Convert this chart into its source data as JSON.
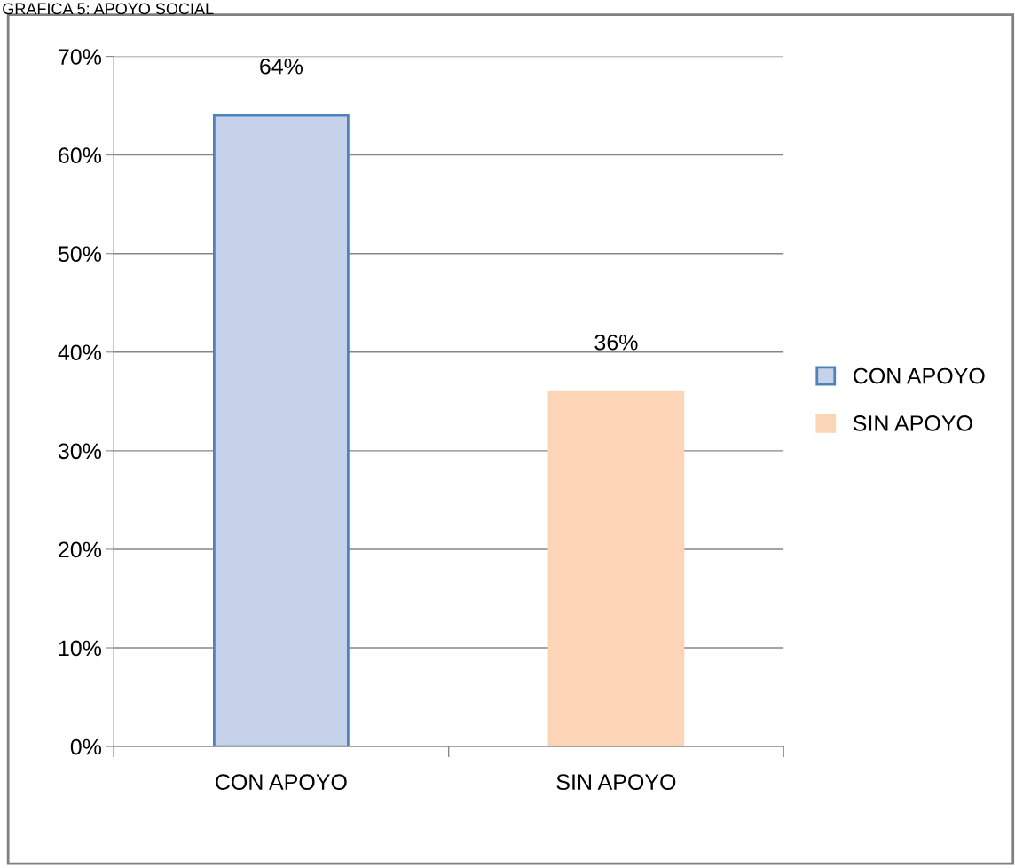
{
  "chart_data": {
    "type": "bar",
    "title": "GRAFICA 5: APOYO SOCIAL",
    "categories": [
      "CON APOYO",
      "SIN APOYO"
    ],
    "series": [
      {
        "name": "CON APOYO",
        "color": "#c6d2ea",
        "values": [
          64,
          null
        ],
        "value_labels": [
          "64%",
          null
        ]
      },
      {
        "name": "SIN APOYO",
        "color": "#fbd5b5",
        "values": [
          null,
          36
        ],
        "value_labels": [
          null,
          "36%"
        ]
      }
    ],
    "ylim": [
      0,
      70
    ],
    "yticks": [
      {
        "value": 0,
        "label": "0%"
      },
      {
        "value": 10,
        "label": "10%"
      },
      {
        "value": 20,
        "label": "20%"
      },
      {
        "value": 30,
        "label": "30%"
      },
      {
        "value": 40,
        "label": "40%"
      },
      {
        "value": 50,
        "label": "50%"
      },
      {
        "value": 60,
        "label": "60%"
      },
      {
        "value": 70,
        "label": "70%"
      }
    ],
    "grid": "y",
    "legend": "right"
  }
}
